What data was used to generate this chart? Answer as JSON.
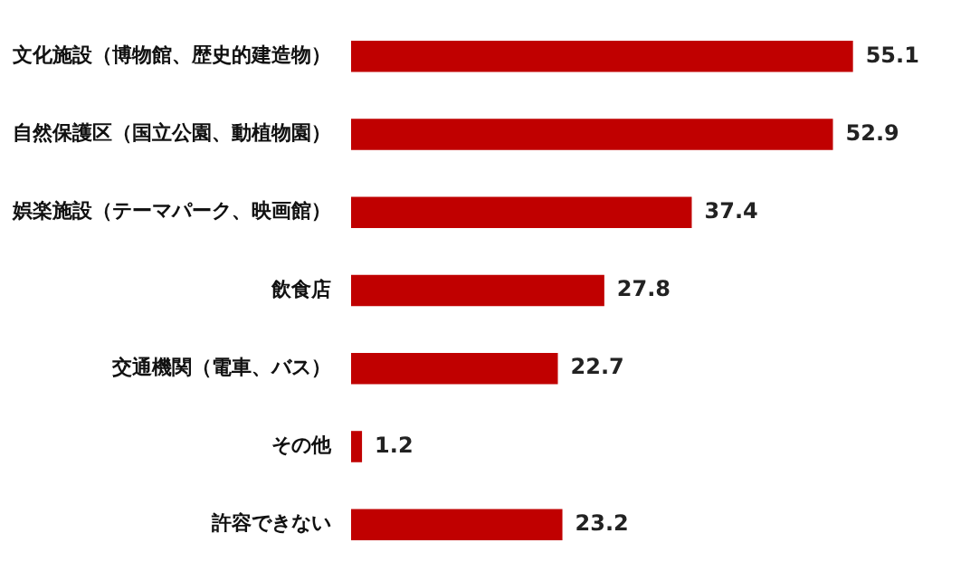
{
  "chart_data": {
    "type": "bar",
    "orientation": "horizontal",
    "categories": [
      "文化施設（博物館、歴史的建造物）",
      "自然保護区（国立公園、動植物園）",
      "娯楽施設（テーマパーク、映画館）",
      "飲食店",
      "交通機関（電車、バス）",
      "その他",
      "許容できない"
    ],
    "values": [
      55.1,
      52.9,
      37.4,
      27.8,
      22.7,
      1.2,
      23.2
    ],
    "color": "#c00000",
    "tick_labels": "y",
    "data_labels": true,
    "legend": false
  }
}
